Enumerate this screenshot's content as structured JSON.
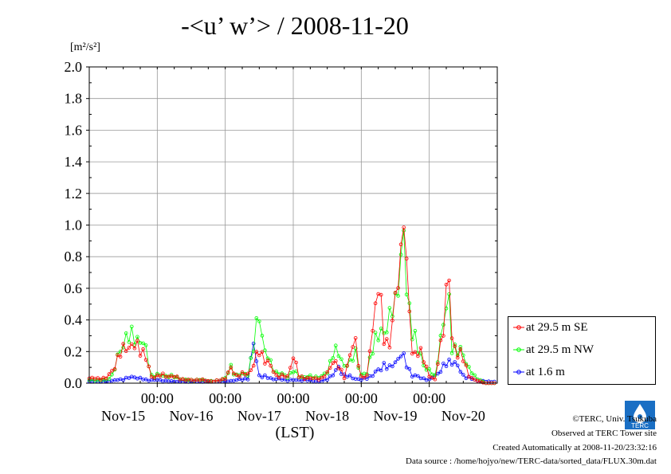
{
  "title": "-<u’ w’> / 2008-11-20",
  "unit_label": "[m²/s²]",
  "xlabel": "(LST)",
  "legend": [
    {
      "label": "at 29.5 m SE",
      "color": "#ff0000"
    },
    {
      "label": "at 29.5 m NW",
      "color": "#00ff00"
    },
    {
      "label": "at 1.6 m",
      "color": "#0000ff"
    }
  ],
  "footer": {
    "copyright": "©TERC, Univ. Tsukuba",
    "observed": "Observed at TERC Tower site",
    "created": "Created Automatically at 2008-11-20/23:32:16",
    "source": "Data source : /home/hojyo/new/TERC-data/sorted_data/FLUX.30m.dat"
  },
  "logo_text": "TERC",
  "chart_data": {
    "type": "line",
    "title": "-<u’ w’> / 2008-11-20",
    "ylabel": "[m²/s²]",
    "xlabel": "(LST)",
    "ylim": [
      0,
      2.0
    ],
    "yticks": [
      "0.0",
      "0.2",
      "0.4",
      "0.6",
      "0.8",
      "1.0",
      "1.2",
      "1.4",
      "1.6",
      "1.8",
      "2.0"
    ],
    "xlim_hours": [
      0,
      144
    ],
    "xticks": [
      {
        "hour": 24,
        "time": "00:00",
        "day": "Nov-15"
      },
      {
        "hour": 48,
        "time": "00:00",
        "day": "Nov-16"
      },
      {
        "hour": 72,
        "time": "00:00",
        "day": "Nov-17"
      },
      {
        "hour": 96,
        "time": "00:00",
        "day": "Nov-18"
      },
      {
        "hour": 120,
        "time": "00:00",
        "day": "Nov-19"
      }
    ],
    "day_labels": [
      "Nov-15",
      "Nov-16",
      "Nov-17",
      "Nov-18",
      "Nov-19",
      "Nov-20"
    ],
    "grid": true,
    "legend_position": "right",
    "series_keyframes": [
      {
        "name": "at 29.5 m SE",
        "color": "#ff0000",
        "points": [
          [
            0,
            0.03
          ],
          [
            6,
            0.03
          ],
          [
            8,
            0.08
          ],
          [
            11,
            0.18
          ],
          [
            13,
            0.25
          ],
          [
            15,
            0.22
          ],
          [
            18,
            0.24
          ],
          [
            20,
            0.15
          ],
          [
            22,
            0.04
          ],
          [
            26,
            0.05
          ],
          [
            30,
            0.04
          ],
          [
            34,
            0.02
          ],
          [
            40,
            0.02
          ],
          [
            44,
            0.01
          ],
          [
            48,
            0.03
          ],
          [
            50,
            0.09
          ],
          [
            52,
            0.05
          ],
          [
            56,
            0.06
          ],
          [
            58,
            0.12
          ],
          [
            60,
            0.2
          ],
          [
            62,
            0.16
          ],
          [
            64,
            0.1
          ],
          [
            66,
            0.05
          ],
          [
            70,
            0.04
          ],
          [
            72,
            0.18
          ],
          [
            74,
            0.04
          ],
          [
            78,
            0.03
          ],
          [
            82,
            0.03
          ],
          [
            84,
            0.06
          ],
          [
            86,
            0.15
          ],
          [
            88,
            0.1
          ],
          [
            90,
            0.04
          ],
          [
            92,
            0.18
          ],
          [
            94,
            0.25
          ],
          [
            96,
            0.04
          ],
          [
            98,
            0.04
          ],
          [
            100,
            0.38
          ],
          [
            102,
            0.6
          ],
          [
            104,
            0.3
          ],
          [
            106,
            0.25
          ],
          [
            108,
            0.5
          ],
          [
            110,
            0.85
          ],
          [
            111,
            1.06
          ],
          [
            112,
            0.7
          ],
          [
            114,
            0.2
          ],
          [
            116,
            0.2
          ],
          [
            118,
            0.15
          ],
          [
            120,
            0.05
          ],
          [
            122,
            0.02
          ],
          [
            124,
            0.25
          ],
          [
            126,
            0.55
          ],
          [
            127,
            0.64
          ],
          [
            128,
            0.28
          ],
          [
            130,
            0.2
          ],
          [
            132,
            0.15
          ],
          [
            134,
            0.05
          ],
          [
            136,
            0.02
          ],
          [
            138,
            0.01
          ],
          [
            140,
            0.0
          ],
          [
            143,
            0.0
          ]
        ]
      },
      {
        "name": "at 29.5 m NW",
        "color": "#00ff00",
        "points": [
          [
            0,
            0.02
          ],
          [
            6,
            0.02
          ],
          [
            8,
            0.05
          ],
          [
            11,
            0.2
          ],
          [
            13,
            0.31
          ],
          [
            15,
            0.28
          ],
          [
            18,
            0.29
          ],
          [
            20,
            0.2
          ],
          [
            22,
            0.05
          ],
          [
            26,
            0.05
          ],
          [
            30,
            0.04
          ],
          [
            34,
            0.02
          ],
          [
            40,
            0.02
          ],
          [
            44,
            0.01
          ],
          [
            48,
            0.03
          ],
          [
            50,
            0.1
          ],
          [
            52,
            0.05
          ],
          [
            56,
            0.06
          ],
          [
            58,
            0.22
          ],
          [
            60,
            0.45
          ],
          [
            62,
            0.2
          ],
          [
            64,
            0.12
          ],
          [
            66,
            0.07
          ],
          [
            70,
            0.04
          ],
          [
            72,
            0.08
          ],
          [
            74,
            0.04
          ],
          [
            78,
            0.04
          ],
          [
            82,
            0.04
          ],
          [
            84,
            0.07
          ],
          [
            86,
            0.2
          ],
          [
            88,
            0.18
          ],
          [
            90,
            0.12
          ],
          [
            92,
            0.12
          ],
          [
            94,
            0.2
          ],
          [
            96,
            0.05
          ],
          [
            98,
            0.06
          ],
          [
            100,
            0.25
          ],
          [
            102,
            0.28
          ],
          [
            104,
            0.35
          ],
          [
            106,
            0.4
          ],
          [
            108,
            0.5
          ],
          [
            110,
            0.8
          ],
          [
            111,
            0.94
          ],
          [
            112,
            0.55
          ],
          [
            114,
            0.38
          ],
          [
            116,
            0.2
          ],
          [
            118,
            0.12
          ],
          [
            120,
            0.08
          ],
          [
            122,
            0.04
          ],
          [
            124,
            0.3
          ],
          [
            126,
            0.45
          ],
          [
            127,
            0.5
          ],
          [
            128,
            0.25
          ],
          [
            130,
            0.2
          ],
          [
            132,
            0.18
          ],
          [
            134,
            0.1
          ],
          [
            136,
            0.04
          ],
          [
            138,
            0.02
          ],
          [
            140,
            0.0
          ],
          [
            143,
            0.0
          ]
        ]
      },
      {
        "name": "at 1.6 m",
        "color": "#0000ff",
        "points": [
          [
            0,
            0.01
          ],
          [
            6,
            0.01
          ],
          [
            10,
            0.02
          ],
          [
            13,
            0.03
          ],
          [
            16,
            0.04
          ],
          [
            18,
            0.03
          ],
          [
            20,
            0.02
          ],
          [
            24,
            0.02
          ],
          [
            30,
            0.01
          ],
          [
            40,
            0.01
          ],
          [
            48,
            0.01
          ],
          [
            52,
            0.02
          ],
          [
            56,
            0.03
          ],
          [
            58,
            0.24
          ],
          [
            60,
            0.05
          ],
          [
            64,
            0.03
          ],
          [
            70,
            0.02
          ],
          [
            76,
            0.02
          ],
          [
            82,
            0.01
          ],
          [
            86,
            0.05
          ],
          [
            88,
            0.1
          ],
          [
            90,
            0.05
          ],
          [
            96,
            0.02
          ],
          [
            100,
            0.05
          ],
          [
            102,
            0.08
          ],
          [
            104,
            0.12
          ],
          [
            106,
            0.09
          ],
          [
            108,
            0.14
          ],
          [
            110,
            0.18
          ],
          [
            112,
            0.12
          ],
          [
            114,
            0.05
          ],
          [
            118,
            0.03
          ],
          [
            120,
            0.02
          ],
          [
            124,
            0.08
          ],
          [
            126,
            0.12
          ],
          [
            128,
            0.15
          ],
          [
            130,
            0.1
          ],
          [
            132,
            0.05
          ],
          [
            136,
            0.02
          ],
          [
            140,
            0.01
          ],
          [
            143,
            0.01
          ]
        ]
      }
    ]
  }
}
